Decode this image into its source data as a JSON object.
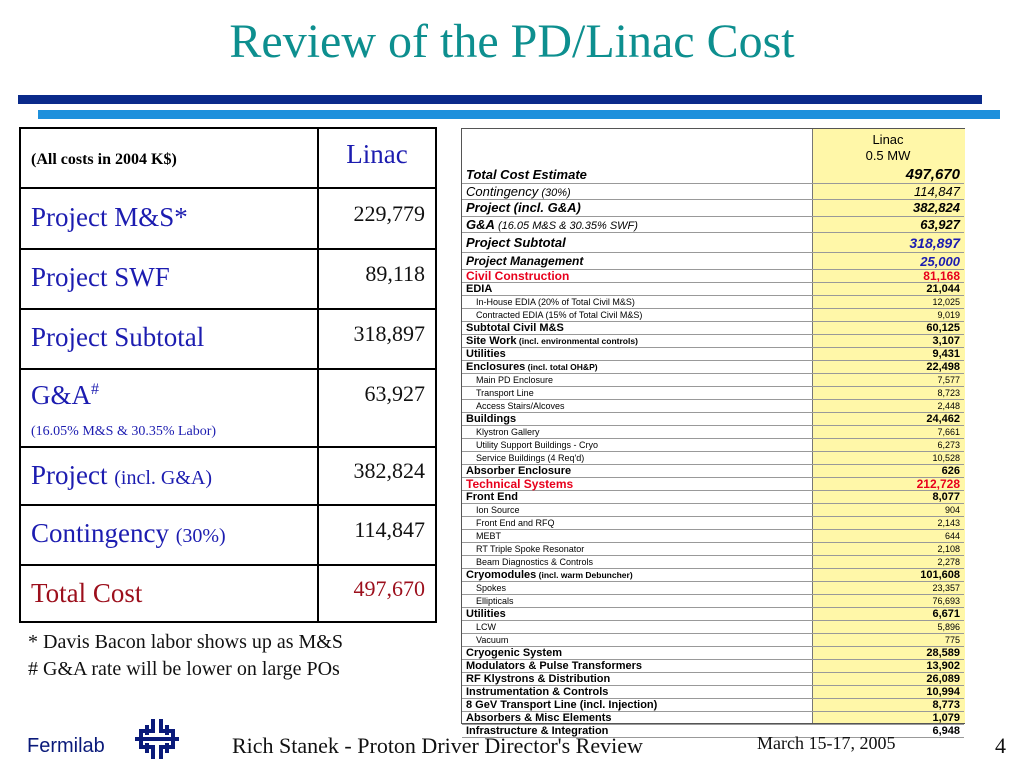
{
  "title": "Review of the PD/Linac Cost",
  "left_table": {
    "header_label": "(All costs in 2004 K$)",
    "header_value": "Linac",
    "rows": [
      {
        "label": "Project M&S*",
        "sub": "",
        "note": "",
        "value": "229,779"
      },
      {
        "label": "Project SWF",
        "sub": "",
        "note": "",
        "value": "89,118"
      },
      {
        "label": "Project Subtotal",
        "sub": "",
        "note": "",
        "value": "318,897"
      },
      {
        "label": "G&A",
        "sup": "#",
        "note": "(16.05% M&S & 30.35% Labor)",
        "value": "63,927"
      },
      {
        "label": "Project ",
        "sub": "(incl. G&A)",
        "note": "",
        "value": "382,824"
      },
      {
        "label": "Contingency ",
        "sub": "(30%)",
        "note": "",
        "value": "114,847"
      },
      {
        "label": "Total Cost",
        "sub": "",
        "note": "",
        "value": "497,670"
      }
    ]
  },
  "notes": [
    "* Davis Bacon labor shows up as M&S",
    "# G&A rate will be lower on large POs"
  ],
  "right_table": {
    "header": [
      "Linac",
      "0.5 MW"
    ],
    "rows": [
      {
        "label": "Total Cost Estimate",
        "suffix": "",
        "value": "497,670",
        "style": "bi-big"
      },
      {
        "label": "Contingency",
        "suffix": "  (30%)",
        "value": "114,847",
        "style": "i"
      },
      {
        "label": "Project (incl. G&A)",
        "suffix": "",
        "value": "382,824",
        "style": "bi"
      },
      {
        "label": "G&A",
        "suffix": "  (16.05 M&S & 30.35% SWF)",
        "value": "63,927",
        "style": "bi-suffix-i"
      },
      {
        "label": "Project Subtotal",
        "suffix": "",
        "value": "318,897",
        "style": "bi-blue"
      },
      {
        "label": "Project Management",
        "suffix": "",
        "value": "25,000",
        "style": "bi-bluev"
      },
      {
        "label": "Civil Construction",
        "suffix": "",
        "value": "81,168",
        "style": "red"
      },
      {
        "label": "EDIA",
        "suffix": "",
        "value": "21,044",
        "style": "b"
      },
      {
        "label": "In-House EDIA (20% of Total Civil M&S)",
        "suffix": "",
        "value": "12,025",
        "style": "sub"
      },
      {
        "label": "Contracted EDIA (15% of Total Civil M&S)",
        "suffix": "",
        "value": "9,019",
        "style": "sub"
      },
      {
        "label": "Subtotal Civil M&S",
        "suffix": "",
        "value": "60,125",
        "style": "b"
      },
      {
        "label": "Site Work",
        "suffix": " (incl. environmental controls)",
        "value": "3,107",
        "style": "b-sm"
      },
      {
        "label": "Utilities",
        "suffix": "",
        "value": "9,431",
        "style": "b"
      },
      {
        "label": "Enclosures",
        "suffix": " (incl. total OH&P)",
        "value": "22,498",
        "style": "b-sm"
      },
      {
        "label": "Main PD Enclosure",
        "suffix": "",
        "value": "7,577",
        "style": "sub"
      },
      {
        "label": "Transport Line",
        "suffix": "",
        "value": "8,723",
        "style": "sub"
      },
      {
        "label": "Access Stairs/Alcoves",
        "suffix": "",
        "value": "2,448",
        "style": "sub"
      },
      {
        "label": "Buildings",
        "suffix": "",
        "value": "24,462",
        "style": "b"
      },
      {
        "label": "Klystron Gallery",
        "suffix": "",
        "value": "7,661",
        "style": "sub"
      },
      {
        "label": "Utility Support Buildings - Cryo",
        "suffix": "",
        "value": "6,273",
        "style": "sub"
      },
      {
        "label": "Service Buildings (4 Req'd)",
        "suffix": "",
        "value": "10,528",
        "style": "sub"
      },
      {
        "label": "Absorber Enclosure",
        "suffix": "",
        "value": "626",
        "style": "b"
      },
      {
        "label": "Technical Systems",
        "suffix": "",
        "value": "212,728",
        "style": "red"
      },
      {
        "label": "Front End",
        "suffix": "",
        "value": "8,077",
        "style": "b"
      },
      {
        "label": "Ion Source",
        "suffix": "",
        "value": "904",
        "style": "sub"
      },
      {
        "label": "Front End and RFQ",
        "suffix": "",
        "value": "2,143",
        "style": "sub"
      },
      {
        "label": "MEBT",
        "suffix": "",
        "value": "644",
        "style": "sub"
      },
      {
        "label": "RT Triple Spoke Resonator",
        "suffix": "",
        "value": "2,108",
        "style": "sub"
      },
      {
        "label": "Beam Diagnostics & Controls",
        "suffix": "",
        "value": "2,278",
        "style": "sub"
      },
      {
        "label": "Cryomodules",
        "suffix": " (incl. warm Debuncher)",
        "value": "101,608",
        "style": "b-sm"
      },
      {
        "label": "Spokes",
        "suffix": "",
        "value": "23,357",
        "style": "sub"
      },
      {
        "label": "Ellipticals",
        "suffix": "",
        "value": "76,693",
        "style": "sub"
      },
      {
        "label": "Utilities",
        "suffix": "",
        "value": "6,671",
        "style": "b"
      },
      {
        "label": "LCW",
        "suffix": "",
        "value": "5,896",
        "style": "sub"
      },
      {
        "label": "Vacuum",
        "suffix": "",
        "value": "775",
        "style": "sub"
      },
      {
        "label": "Cryogenic System",
        "suffix": "",
        "value": "28,589",
        "style": "b"
      },
      {
        "label": "Modulators & Pulse Transformers",
        "suffix": "",
        "value": "13,902",
        "style": "b"
      },
      {
        "label": "RF Klystrons & Distribution",
        "suffix": "",
        "value": "26,089",
        "style": "b"
      },
      {
        "label": "Instrumentation & Controls",
        "suffix": "",
        "value": "10,994",
        "style": "b"
      },
      {
        "label": "8 GeV Transport Line (incl. Injection)",
        "suffix": "",
        "value": "8,773",
        "style": "b"
      },
      {
        "label": "Absorbers & Misc Elements",
        "suffix": "",
        "value": "1,079",
        "style": "b"
      },
      {
        "label": "Infrastructure & Integration",
        "suffix": "",
        "value": "6,948",
        "style": "b"
      }
    ]
  },
  "footer": {
    "brand": "Fermilab",
    "center": "Rich Stanek - Proton Driver Director's Review",
    "date": "March 15-17, 2005",
    "page": "4"
  },
  "colors": {
    "title": "#0d8f8f",
    "label_blue": "#1c1cb0",
    "total_red": "#9c0f1c",
    "rule_dark": "#0a2a8a",
    "rule_light": "#1e90dc",
    "value_fill": "#fff7a8",
    "red_text": "#e8001c",
    "blue_text": "#1c1cb0"
  },
  "icons": {
    "logo": "fermilab-logo-icon"
  }
}
